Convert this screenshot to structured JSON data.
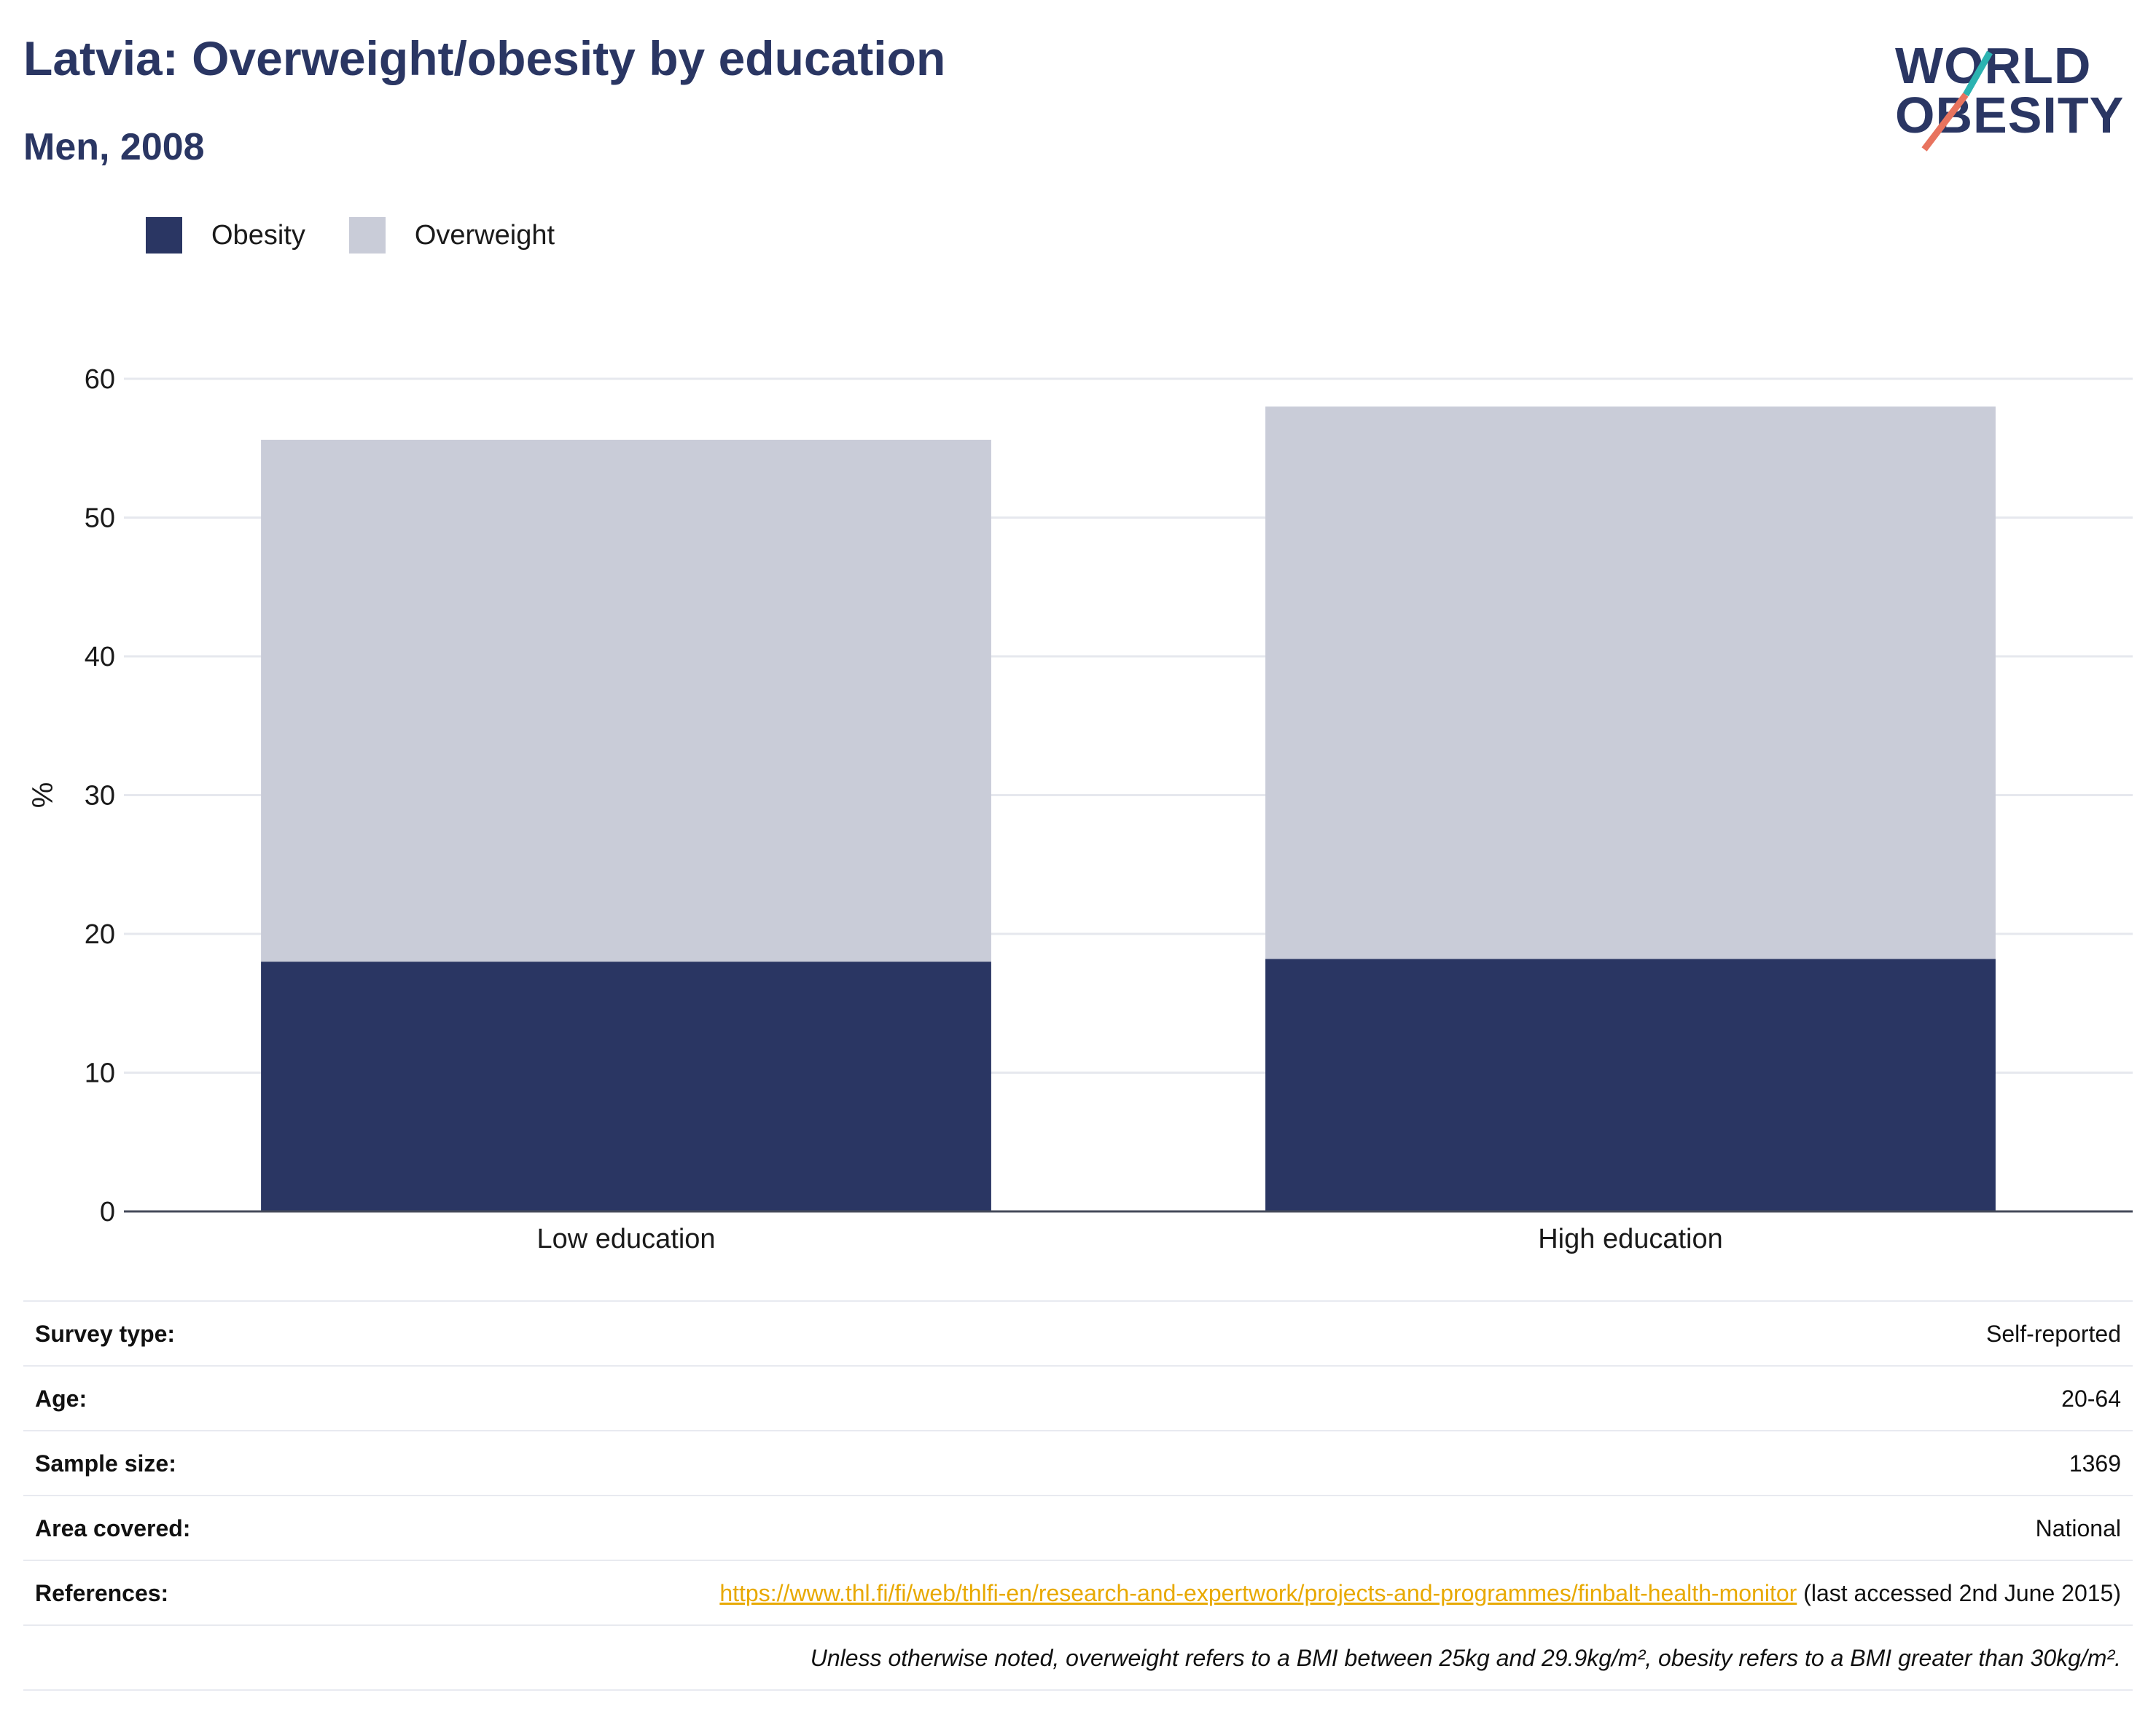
{
  "header": {
    "title": "Latvia: Overweight/obesity by education",
    "subtitle": "Men, 2008"
  },
  "logo": {
    "line1": "WORLD",
    "line2": "OBESITY",
    "slash_top_color": "#2bb3b1",
    "slash_bottom_color": "#e8735e"
  },
  "legend": [
    {
      "label": "Obesity",
      "color": "#2a3663"
    },
    {
      "label": "Overweight",
      "color": "#c9ccd8"
    }
  ],
  "chart_data": {
    "type": "bar",
    "stacked": true,
    "categories": [
      "Low education",
      "High education"
    ],
    "series": [
      {
        "name": "Obesity",
        "values": [
          18.0,
          18.2
        ],
        "color": "#2a3663"
      },
      {
        "name": "Overweight",
        "values": [
          37.6,
          39.8
        ],
        "color": "#c9ccd8"
      }
    ],
    "ylabel": "%",
    "ylim": [
      0,
      60
    ],
    "yticks": [
      0,
      10,
      20,
      30,
      40,
      50,
      60
    ],
    "grid": true,
    "legend_position": "top-left"
  },
  "info": {
    "survey_type_label": "Survey type:",
    "survey_type_value": "Self-reported",
    "age_label": "Age:",
    "age_value": "20-64",
    "sample_size_label": "Sample size:",
    "sample_size_value": "1369",
    "area_label": "Area covered:",
    "area_value": "National",
    "references_label": "References:",
    "references_link": "https://www.thl.fi/fi/web/thlfi-en/research-and-expertwork/projects-and-programmes/finbalt-health-monitor",
    "references_suffix": " (last accessed 2nd June 2015)",
    "note": "Unless otherwise noted, overweight refers to a BMI between 25kg and 29.9kg/m², obesity refers to a BMI greater than 30kg/m²."
  }
}
